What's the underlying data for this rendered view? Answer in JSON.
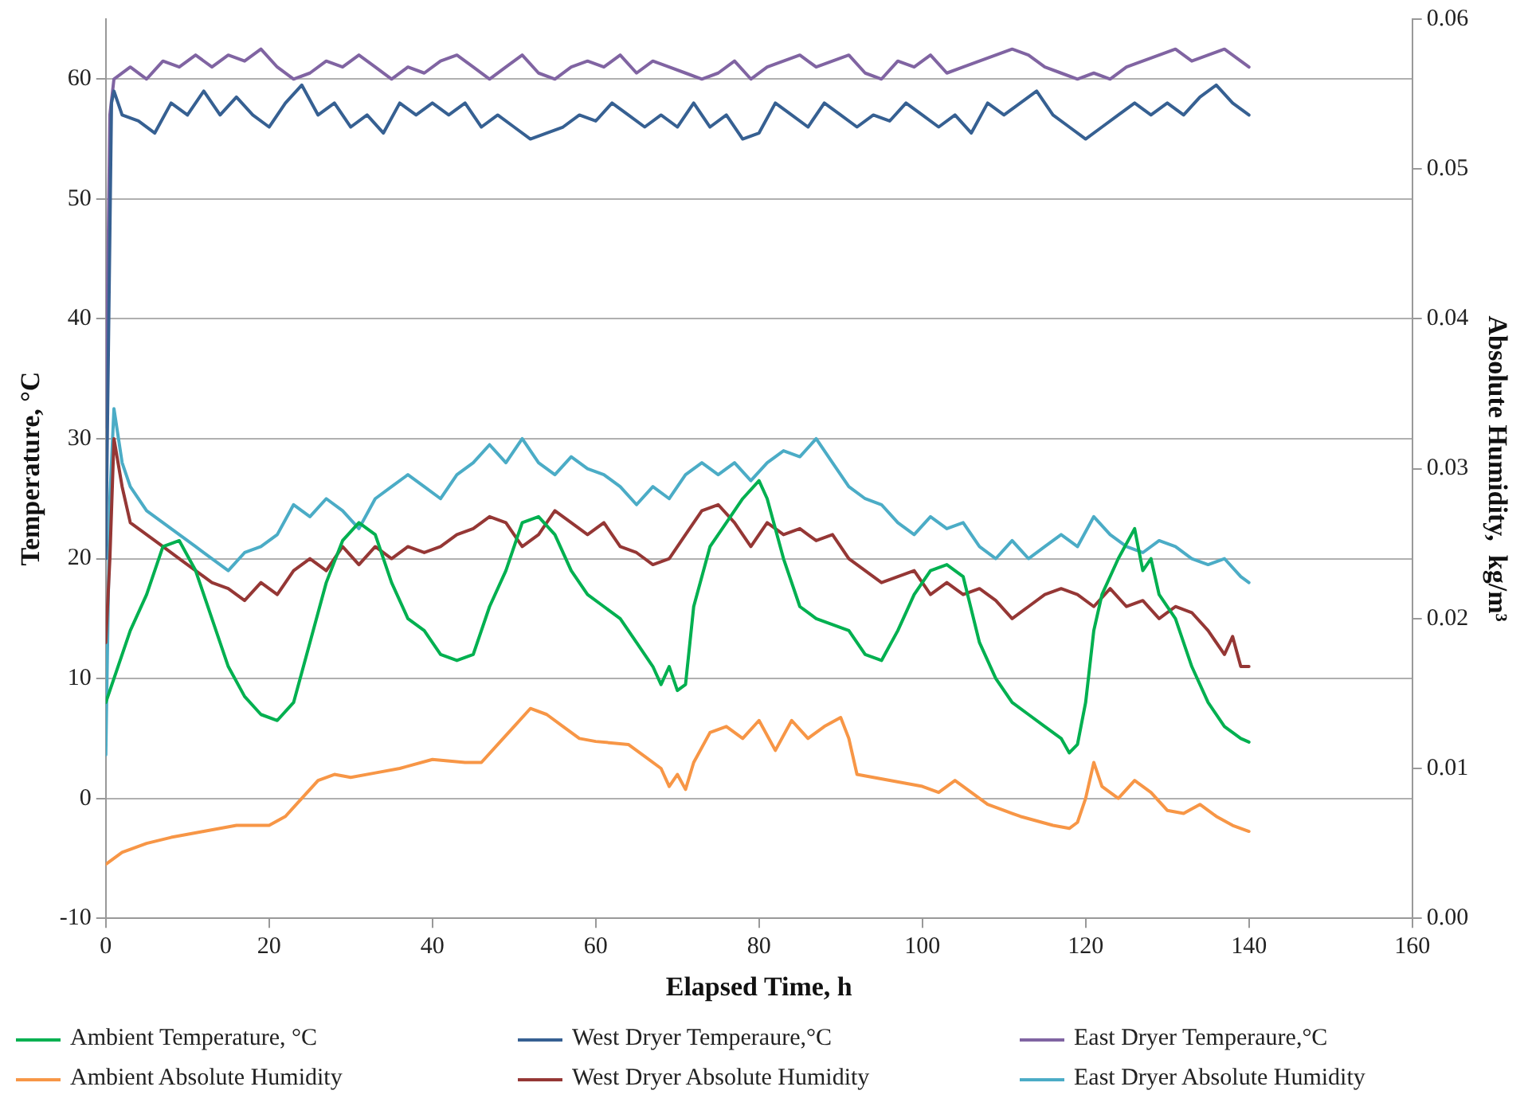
{
  "chart_data": {
    "type": "line",
    "xlabel": "Elapsed Time, h",
    "ylabel": "Temperature, °C",
    "y2label": "Absolute Humidity,  kg/m³",
    "xlim": [
      0,
      160
    ],
    "xticks": [
      0,
      20,
      40,
      60,
      80,
      100,
      120,
      140,
      160
    ],
    "ylim": [
      -10,
      65
    ],
    "yticks": [
      -10,
      0,
      10,
      20,
      30,
      40,
      50,
      60
    ],
    "y2lim": [
      0,
      0.06
    ],
    "y2ticks": [
      {
        "value": 0,
        "label": "0.00"
      },
      {
        "value": 0.01,
        "label": "0.01"
      },
      {
        "value": 0.02,
        "label": "0.02"
      },
      {
        "value": 0.03,
        "label": "0.03"
      },
      {
        "value": 0.04,
        "label": "0.04"
      },
      {
        "value": 0.05,
        "label": "0.05"
      },
      {
        "value": 0.06,
        "label": "0.06"
      }
    ],
    "grid": "y",
    "legend": "bottom",
    "marker": "none",
    "line_style": "solid",
    "series": [
      {
        "name": "Ambient Temperature, °C",
        "color": "#00b050",
        "x": [
          0,
          1,
          3,
          5,
          7,
          9,
          11,
          13,
          15,
          17,
          19,
          21,
          23,
          25,
          27,
          29,
          31,
          33,
          35,
          37,
          39,
          41,
          43,
          45,
          47,
          49,
          51,
          53,
          55,
          57,
          59,
          61,
          63,
          65,
          67,
          68,
          69,
          70,
          71,
          72,
          74,
          76,
          78,
          80,
          81,
          83,
          85,
          87,
          89,
          91,
          93,
          95,
          97,
          99,
          101,
          103,
          105,
          107,
          109,
          111,
          113,
          115,
          117,
          118,
          119,
          120,
          121,
          122,
          124,
          126,
          127,
          128,
          129,
          131,
          133,
          135,
          137,
          139,
          140
        ],
        "values": [
          8,
          10,
          14,
          17,
          21,
          21.5,
          19,
          15,
          11,
          8.5,
          7,
          6.5,
          8,
          13,
          18,
          21.5,
          23,
          22,
          18,
          15,
          14,
          12,
          11.5,
          12,
          16,
          19,
          23,
          23.5,
          22,
          19,
          17,
          16,
          15,
          13,
          11,
          9.5,
          11,
          9,
          9.5,
          16,
          21,
          23,
          25,
          26.5,
          25,
          20,
          16,
          15,
          14.5,
          14,
          12,
          11.5,
          14,
          17,
          19,
          19.5,
          18.5,
          13,
          10,
          8,
          7,
          6,
          5,
          3.8,
          4.5,
          8,
          14,
          17,
          20,
          22.5,
          19,
          20,
          17,
          15,
          11,
          8,
          6,
          5,
          4.7
        ]
      },
      {
        "name": "West Dryer Temperaure,°C",
        "color": "#366092",
        "x": [
          0,
          0.7,
          1,
          2,
          4,
          6,
          8,
          10,
          12,
          14,
          16,
          18,
          20,
          22,
          24,
          26,
          28,
          30,
          32,
          34,
          36,
          38,
          40,
          42,
          44,
          46,
          48,
          50,
          52,
          54,
          56,
          58,
          60,
          62,
          64,
          66,
          68,
          70,
          72,
          74,
          76,
          78,
          80,
          82,
          84,
          86,
          88,
          90,
          92,
          94,
          96,
          98,
          100,
          102,
          104,
          106,
          108,
          110,
          112,
          114,
          116,
          118,
          120,
          122,
          124,
          126,
          128,
          130,
          132,
          134,
          136,
          138,
          140
        ],
        "values": [
          20,
          58,
          59,
          57,
          56.5,
          55.5,
          58,
          57,
          59,
          57,
          58.5,
          57,
          56,
          58,
          59.5,
          57,
          58,
          56,
          57,
          55.5,
          58,
          57,
          58,
          57,
          58,
          56,
          57,
          56,
          55,
          55.5,
          56,
          57,
          56.5,
          58,
          57,
          56,
          57,
          56,
          58,
          56,
          57,
          55,
          55.5,
          58,
          57,
          56,
          58,
          57,
          56,
          57,
          56.5,
          58,
          57,
          56,
          57,
          55.5,
          58,
          57,
          58,
          59,
          57,
          56,
          55,
          56,
          57,
          58,
          57,
          58,
          57,
          58.5,
          59.5,
          58,
          57
        ]
      },
      {
        "name": "East Dryer Temperaure,°C",
        "color": "#8064a2",
        "x": [
          0,
          0.5,
          1,
          3,
          5,
          7,
          9,
          11,
          13,
          15,
          17,
          19,
          21,
          23,
          25,
          27,
          29,
          31,
          33,
          35,
          37,
          39,
          41,
          43,
          45,
          47,
          49,
          51,
          53,
          55,
          57,
          59,
          61,
          63,
          65,
          67,
          69,
          71,
          73,
          75,
          77,
          79,
          81,
          83,
          85,
          87,
          89,
          91,
          93,
          95,
          97,
          99,
          101,
          103,
          105,
          107,
          109,
          111,
          113,
          115,
          117,
          119,
          121,
          123,
          125,
          127,
          129,
          131,
          133,
          135,
          137,
          139,
          140
        ],
        "values": [
          31,
          57,
          60,
          61,
          60,
          61.5,
          61,
          62,
          61,
          62,
          61.5,
          62.5,
          61,
          60,
          60.5,
          61.5,
          61,
          62,
          61,
          60,
          61,
          60.5,
          61.5,
          62,
          61,
          60,
          61,
          62,
          60.5,
          60,
          61,
          61.5,
          61,
          62,
          60.5,
          61.5,
          61,
          60.5,
          60,
          60.5,
          61.5,
          60,
          61,
          61.5,
          62,
          61,
          61.5,
          62,
          60.5,
          60,
          61.5,
          61,
          62,
          60.5,
          61,
          61.5,
          62,
          62.5,
          62,
          61,
          60.5,
          60,
          60.5,
          60,
          61,
          61.5,
          62,
          62.5,
          61.5,
          62,
          62.5,
          61.5,
          61
        ]
      },
      {
        "name": "Ambient Absolute Humidity",
        "color": "#f79646",
        "axis": "y2",
        "x": [
          0,
          2,
          5,
          8,
          12,
          16,
          20,
          22,
          24,
          26,
          28,
          30,
          33,
          36,
          40,
          44,
          46,
          48,
          50,
          52,
          54,
          56,
          58,
          60,
          64,
          66,
          68,
          69,
          70,
          71,
          72,
          74,
          76,
          78,
          80,
          82,
          84,
          86,
          88,
          90,
          91,
          92,
          96,
          100,
          102,
          104,
          106,
          108,
          112,
          116,
          118,
          119,
          120,
          121,
          122,
          124,
          126,
          128,
          130,
          132,
          134,
          136,
          138,
          140
        ],
        "values": [
          0.0036,
          0.0044,
          0.005,
          0.0054,
          0.0058,
          0.0062,
          0.0062,
          0.0068,
          0.008,
          0.0092,
          0.0096,
          0.0094,
          0.0097,
          0.01,
          0.0106,
          0.0104,
          0.0104,
          0.0116,
          0.0128,
          0.014,
          0.0136,
          0.0128,
          0.012,
          0.0118,
          0.0116,
          0.0108,
          0.01,
          0.0088,
          0.0096,
          0.0086,
          0.0104,
          0.0124,
          0.0128,
          0.012,
          0.0132,
          0.0112,
          0.0132,
          0.012,
          0.0128,
          0.0134,
          0.012,
          0.0096,
          0.0092,
          0.0088,
          0.0084,
          0.0092,
          0.0084,
          0.0076,
          0.0068,
          0.0062,
          0.006,
          0.0064,
          0.008,
          0.0104,
          0.0088,
          0.008,
          0.0092,
          0.0084,
          0.0072,
          0.007,
          0.0076,
          0.0068,
          0.0062,
          0.0058
        ]
      },
      {
        "name": "West Dryer Absolute Humidity",
        "color": "#953735",
        "axis": "y2",
        "x": [
          0,
          0.5,
          1,
          2,
          3,
          5,
          7,
          9,
          11,
          13,
          15,
          17,
          19,
          21,
          23,
          25,
          27,
          29,
          31,
          33,
          35,
          37,
          39,
          41,
          43,
          45,
          47,
          49,
          51,
          53,
          55,
          57,
          59,
          61,
          63,
          65,
          67,
          69,
          71,
          73,
          75,
          77,
          79,
          81,
          83,
          85,
          87,
          89,
          91,
          93,
          95,
          97,
          99,
          101,
          103,
          105,
          107,
          109,
          111,
          113,
          115,
          117,
          119,
          121,
          123,
          125,
          127,
          129,
          131,
          133,
          135,
          137,
          138,
          139,
          140
        ],
        "values": [
          0.0184,
          0.024,
          0.032,
          0.0288,
          0.0264,
          0.0256,
          0.0248,
          0.024,
          0.0232,
          0.0224,
          0.022,
          0.0212,
          0.0224,
          0.0216,
          0.0232,
          0.024,
          0.0232,
          0.0248,
          0.0236,
          0.0248,
          0.024,
          0.0248,
          0.0244,
          0.0248,
          0.0256,
          0.026,
          0.0268,
          0.0264,
          0.0248,
          0.0256,
          0.0272,
          0.0264,
          0.0256,
          0.0264,
          0.0248,
          0.0244,
          0.0236,
          0.024,
          0.0256,
          0.0272,
          0.0276,
          0.0264,
          0.0248,
          0.0264,
          0.0256,
          0.026,
          0.0252,
          0.0256,
          0.024,
          0.0232,
          0.0224,
          0.0228,
          0.0232,
          0.0216,
          0.0224,
          0.0216,
          0.022,
          0.0212,
          0.02,
          0.0208,
          0.0216,
          0.022,
          0.0216,
          0.0208,
          0.022,
          0.0208,
          0.0212,
          0.02,
          0.0208,
          0.0204,
          0.0192,
          0.0176,
          0.0188,
          0.0168,
          0.0168
        ]
      },
      {
        "name": "East Dryer Absolute Humidity",
        "color": "#4bacc6",
        "axis": "y2",
        "x": [
          0,
          0.5,
          1,
          2,
          3,
          5,
          7,
          9,
          11,
          13,
          15,
          17,
          19,
          21,
          23,
          25,
          27,
          29,
          31,
          33,
          35,
          37,
          39,
          41,
          43,
          45,
          47,
          49,
          51,
          53,
          55,
          57,
          59,
          61,
          63,
          65,
          67,
          69,
          71,
          73,
          75,
          77,
          79,
          81,
          83,
          85,
          87,
          89,
          91,
          93,
          95,
          97,
          99,
          101,
          103,
          105,
          107,
          109,
          111,
          113,
          115,
          117,
          119,
          121,
          123,
          125,
          127,
          129,
          131,
          133,
          135,
          137,
          139,
          140
        ],
        "values": [
          0.0109,
          0.028,
          0.034,
          0.0304,
          0.0288,
          0.0272,
          0.0264,
          0.0256,
          0.0248,
          0.024,
          0.0232,
          0.0244,
          0.0248,
          0.0256,
          0.0276,
          0.0268,
          0.028,
          0.0272,
          0.026,
          0.028,
          0.0288,
          0.0296,
          0.0288,
          0.028,
          0.0296,
          0.0304,
          0.0316,
          0.0304,
          0.032,
          0.0304,
          0.0296,
          0.0308,
          0.03,
          0.0296,
          0.0288,
          0.0276,
          0.0288,
          0.028,
          0.0296,
          0.0304,
          0.0296,
          0.0304,
          0.0292,
          0.0304,
          0.0312,
          0.0308,
          0.032,
          0.0304,
          0.0288,
          0.028,
          0.0276,
          0.0264,
          0.0256,
          0.0268,
          0.026,
          0.0264,
          0.0248,
          0.024,
          0.0252,
          0.024,
          0.0248,
          0.0256,
          0.0248,
          0.0268,
          0.0256,
          0.0248,
          0.0244,
          0.0252,
          0.0248,
          0.024,
          0.0236,
          0.024,
          0.0228,
          0.0224
        ]
      }
    ]
  }
}
